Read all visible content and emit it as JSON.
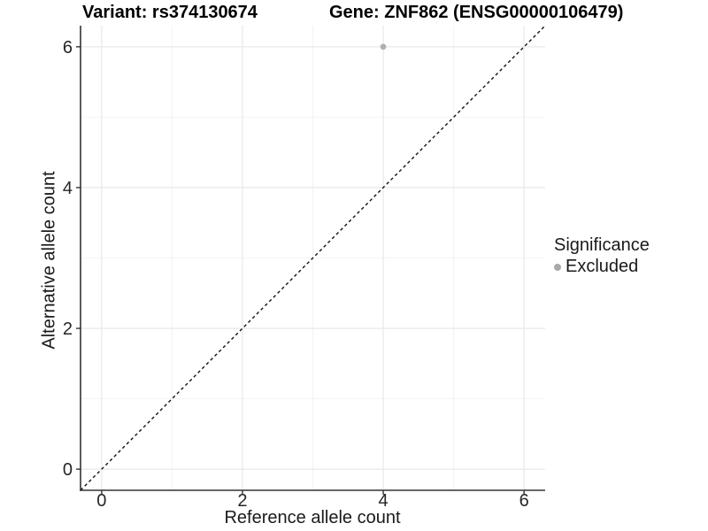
{
  "page": {
    "background": "#ffffff"
  },
  "titles": {
    "variant": "Variant: rs374130674",
    "gene": "Gene: ZNF862 (ENSG00000106479)"
  },
  "axes": {
    "x_label": "Reference allele count",
    "y_label": "Alternative allele count"
  },
  "legend": {
    "title": "Significance",
    "position": "right",
    "items": [
      {
        "label": "Excluded",
        "color": "#a9a9a9"
      }
    ]
  },
  "chart_data": {
    "type": "scatter",
    "title": "Variant: rs374130674 / Gene: ZNF862 (ENSG00000106479)",
    "xlabel": "Reference allele count",
    "ylabel": "Alternative allele count",
    "xlim": [
      -0.3,
      6.3
    ],
    "ylim": [
      -0.3,
      6.3
    ],
    "x_ticks": [
      0,
      2,
      4,
      6
    ],
    "y_ticks": [
      0,
      2,
      4,
      6
    ],
    "x_minor_ticks": [
      1,
      3,
      5
    ],
    "y_minor_ticks": [
      1,
      3,
      5
    ],
    "grid": "major+minor",
    "legend_position": "right",
    "series": [
      {
        "name": "Excluded",
        "color": "#b0b0b0",
        "points": [
          {
            "x": 4,
            "y": 6
          }
        ]
      }
    ],
    "reference_line": {
      "slope": 1,
      "intercept": 0,
      "style": "dashed",
      "color": "#111111"
    }
  },
  "colors": {
    "grid_major": "#e9e9e9",
    "grid_minor": "#f3f3f3",
    "axis_line": "#333333",
    "tick_mark": "#333333",
    "tick_label": "#262626",
    "point": "#b0b0b0",
    "reference_line": "#111111"
  }
}
